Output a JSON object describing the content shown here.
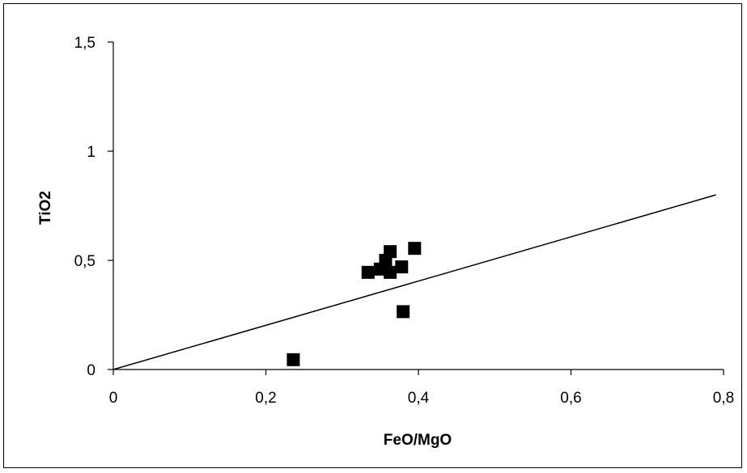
{
  "chart_data": {
    "type": "scatter",
    "xlabel": "FeO/MgO",
    "ylabel": "TiO2",
    "xlim": [
      0,
      0.8
    ],
    "ylim": [
      0,
      1.5
    ],
    "x_ticks": [
      "0",
      "0,2",
      "0,4",
      "0,6",
      "0,8"
    ],
    "y_ticks": [
      "0",
      "0,5",
      "1",
      "1,5"
    ],
    "grid": false,
    "legend": "none",
    "marker_color": "#000000",
    "points": [
      {
        "x": 0.236,
        "y": 0.045
      },
      {
        "x": 0.334,
        "y": 0.445
      },
      {
        "x": 0.35,
        "y": 0.46
      },
      {
        "x": 0.357,
        "y": 0.5
      },
      {
        "x": 0.363,
        "y": 0.54
      },
      {
        "x": 0.363,
        "y": 0.445
      },
      {
        "x": 0.378,
        "y": 0.47
      },
      {
        "x": 0.38,
        "y": 0.265
      },
      {
        "x": 0.395,
        "y": 0.555
      }
    ],
    "line": {
      "x": [
        0,
        0.79
      ],
      "y": [
        0,
        0.8
      ]
    }
  }
}
